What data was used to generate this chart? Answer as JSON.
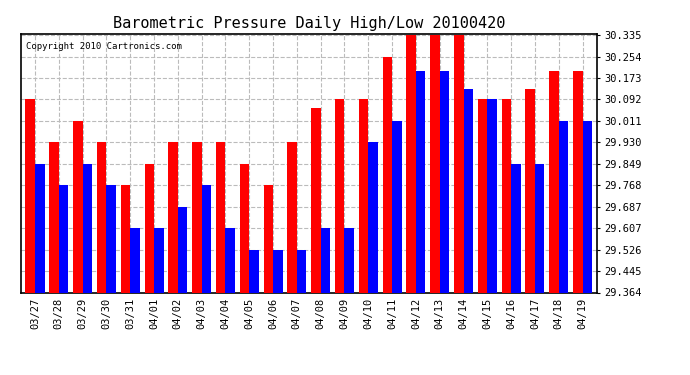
{
  "title": "Barometric Pressure Daily High/Low 20100420",
  "copyright": "Copyright 2010 Cartronics.com",
  "categories": [
    "03/27",
    "03/28",
    "03/29",
    "03/30",
    "03/31",
    "04/01",
    "04/02",
    "04/03",
    "04/04",
    "04/05",
    "04/06",
    "04/07",
    "04/08",
    "04/09",
    "04/10",
    "04/11",
    "04/12",
    "04/13",
    "04/14",
    "04/15",
    "04/16",
    "04/17",
    "04/18",
    "04/19"
  ],
  "high_values": [
    30.092,
    29.93,
    30.011,
    29.93,
    29.768,
    29.849,
    29.93,
    29.93,
    29.93,
    29.849,
    29.768,
    29.93,
    30.06,
    30.092,
    30.092,
    30.254,
    30.335,
    30.335,
    30.335,
    30.092,
    30.092,
    30.13,
    30.2,
    30.2
  ],
  "low_values": [
    29.849,
    29.768,
    29.849,
    29.768,
    29.607,
    29.607,
    29.687,
    29.768,
    29.607,
    29.526,
    29.526,
    29.526,
    29.607,
    29.607,
    29.93,
    30.011,
    30.2,
    30.2,
    30.13,
    30.092,
    29.849,
    29.849,
    30.011,
    30.011
  ],
  "ymin": 29.364,
  "ymax": 30.335,
  "yticks": [
    29.364,
    29.445,
    29.526,
    29.607,
    29.687,
    29.768,
    29.849,
    29.93,
    30.011,
    30.092,
    30.173,
    30.254,
    30.335
  ],
  "high_color": "#FF0000",
  "low_color": "#0000FF",
  "bg_color": "#FFFFFF",
  "grid_color": "#BBBBBB",
  "title_fontsize": 11,
  "bar_width": 0.4
}
